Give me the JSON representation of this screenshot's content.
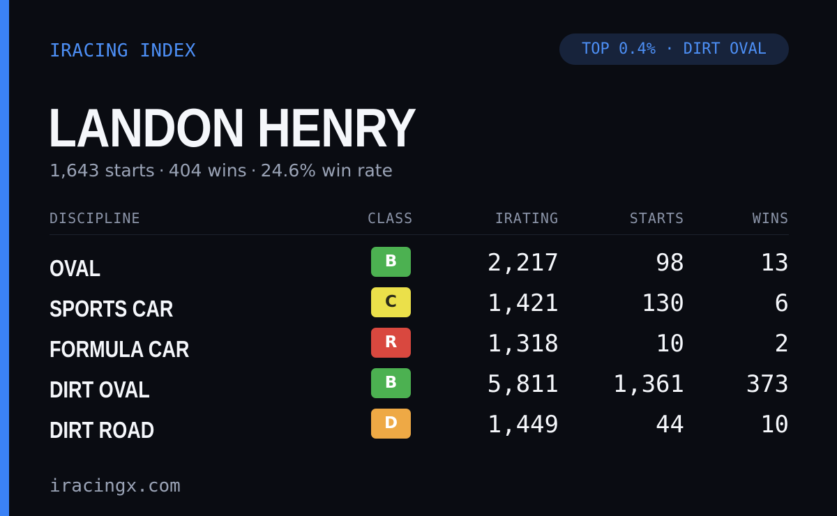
{
  "theme": {
    "accent": "#3b82f6",
    "badge_bg": "#17233b",
    "badge_text": "#4d8ff5"
  },
  "brand": "IRACING INDEX",
  "badge": "TOP 0.4% · DIRT OVAL",
  "driver": {
    "name": "LANDON HENRY",
    "starts": "1,643 starts",
    "wins": "404 wins",
    "win_rate": "24.6% win rate",
    "separator": "·"
  },
  "table": {
    "headers": {
      "discipline": "DISCIPLINE",
      "class": "CLASS",
      "irating": "IRATING",
      "starts": "STARTS",
      "wins": "WINS"
    },
    "rows": [
      {
        "discipline": "OVAL",
        "class": "B",
        "class_bg": "#4cb151",
        "class_fg": "#ffffff",
        "irating": "2,217",
        "starts": "98",
        "wins": "13"
      },
      {
        "discipline": "SPORTS CAR",
        "class": "C",
        "class_bg": "#ebe04a",
        "class_fg": "#2a2a1a",
        "irating": "1,421",
        "starts": "130",
        "wins": "6"
      },
      {
        "discipline": "FORMULA CAR",
        "class": "R",
        "class_bg": "#d9483f",
        "class_fg": "#ffffff",
        "irating": "1,318",
        "starts": "10",
        "wins": "2"
      },
      {
        "discipline": "DIRT OVAL",
        "class": "B",
        "class_bg": "#4cb151",
        "class_fg": "#ffffff",
        "irating": "5,811",
        "starts": "1,361",
        "wins": "373"
      },
      {
        "discipline": "DIRT ROAD",
        "class": "D",
        "class_bg": "#eea945",
        "class_fg": "#ffffff",
        "irating": "1,449",
        "starts": "44",
        "wins": "10"
      }
    ]
  },
  "footer": "iracingx.com"
}
